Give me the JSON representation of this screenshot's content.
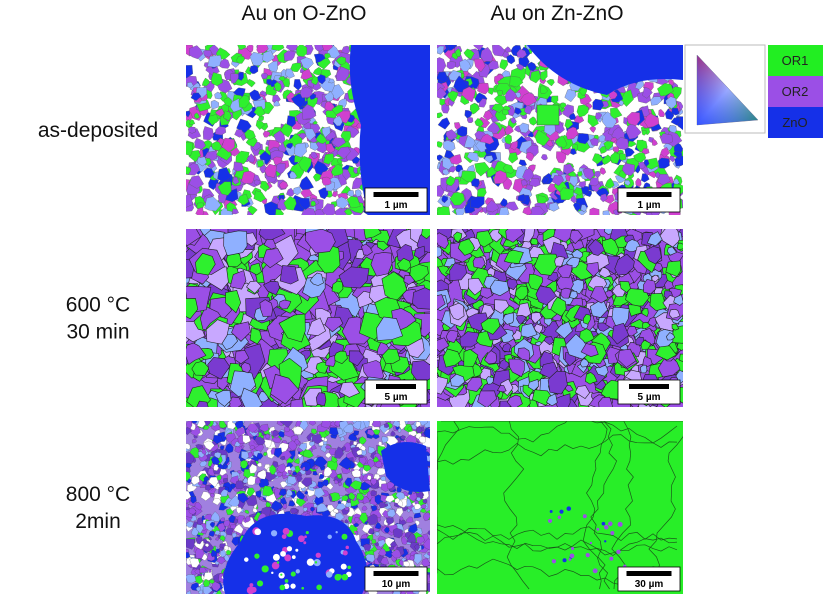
{
  "columns": [
    "Au on O-ZnO",
    "Au on Zn-ZnO"
  ],
  "rows": [
    {
      "label": [
        "as-deposited"
      ],
      "scale_bars": [
        "1 µm",
        "1 µm"
      ]
    },
    {
      "label": [
        "600 °C",
        "30 min"
      ],
      "scale_bars": [
        "5 µm",
        "5 µm"
      ]
    },
    {
      "label": [
        "800 °C",
        "2min"
      ],
      "scale_bars": [
        "10 µm",
        "30 µm"
      ]
    }
  ],
  "legend": [
    "OR1",
    "OR2",
    "ZnO"
  ]
}
